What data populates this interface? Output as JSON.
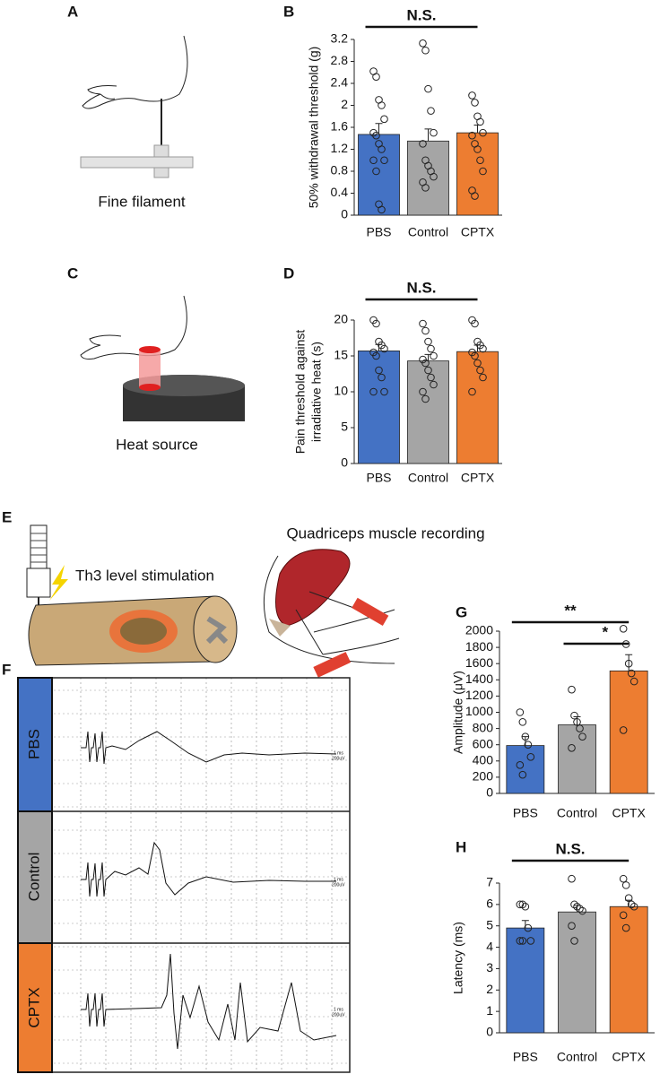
{
  "panel_labels": [
    "A",
    "B",
    "C",
    "D",
    "E",
    "F",
    "G",
    "H"
  ],
  "captions": {
    "fine_filament": "Fine filament",
    "heat_source": "Heat source",
    "stimulation": "Th3 level stimulation",
    "recording": "Quadriceps muscle recording"
  },
  "traces": {
    "labels": [
      "PBS",
      "Control",
      "CPTX"
    ],
    "scale": [
      "1 ms",
      "200uV"
    ]
  },
  "chart_data": [
    {
      "type": "bar",
      "ylabel": "50% withdrawal threshold (g)",
      "annotations": [
        "N.S."
      ],
      "categories": [
        "PBS",
        "Control",
        "CPTX"
      ],
      "colors": [
        "#4472c4",
        "#a5a5a5",
        "#ed7d31"
      ],
      "values": [
        1.47,
        1.35,
        1.5
      ],
      "errors": [
        0.2,
        0.22,
        0.14
      ],
      "points": [
        [
          2.62,
          2.52,
          2.1,
          2.0,
          1.75,
          1.5,
          1.45,
          1.3,
          1.2,
          1.0,
          1.0,
          0.8,
          0.2,
          0.1
        ],
        [
          3.13,
          3.0,
          2.3,
          1.9,
          1.5,
          1.3,
          1.0,
          0.9,
          0.8,
          0.7,
          0.6,
          0.5
        ],
        [
          2.18,
          2.05,
          1.8,
          1.7,
          1.5,
          1.45,
          1.3,
          1.2,
          1.0,
          0.8,
          0.45,
          0.35
        ]
      ],
      "ylim": [
        0,
        3.2
      ],
      "yticks": [
        0,
        0.4,
        0.8,
        1.2,
        1.6,
        2,
        2.4,
        2.8,
        3.2
      ]
    },
    {
      "type": "bar",
      "ylabel": [
        "Pain threshold against",
        "irradiative heat (s)"
      ],
      "annotations": [
        "N.S."
      ],
      "categories": [
        "PBS",
        "Control",
        "CPTX"
      ],
      "colors": [
        "#4472c4",
        "#a5a5a5",
        "#ed7d31"
      ],
      "values": [
        15.7,
        14.3,
        15.6
      ],
      "errors": [
        0.9,
        0.9,
        0.9
      ],
      "points": [
        [
          20,
          19.5,
          17,
          16.5,
          16,
          15.5,
          15,
          13,
          12,
          10,
          10
        ],
        [
          19.5,
          18.5,
          17,
          16,
          15,
          14.5,
          14,
          13,
          12,
          11,
          10,
          9
        ],
        [
          20,
          19.5,
          17,
          16.5,
          16,
          15.5,
          15,
          14,
          13,
          12,
          10
        ]
      ],
      "ylim": [
        0,
        20
      ],
      "yticks": [
        0,
        5,
        10,
        15,
        20
      ]
    },
    {
      "type": "bar",
      "ylabel": "Amplitude (μV)",
      "annotations": [
        "**",
        "*"
      ],
      "categories": [
        "PBS",
        "Control",
        "CPTX"
      ],
      "colors": [
        "#4472c4",
        "#a5a5a5",
        "#ed7d31"
      ],
      "values": [
        590,
        845,
        1510
      ],
      "errors": [
        110,
        100,
        200
      ],
      "points": [
        [
          1000,
          880,
          700,
          600,
          450,
          350,
          230
        ],
        [
          1280,
          960,
          880,
          800,
          700,
          560
        ],
        [
          2030,
          1840,
          1600,
          1480,
          1380,
          780
        ]
      ],
      "ylim": [
        0,
        2000
      ],
      "yticks": [
        0,
        200,
        400,
        600,
        800,
        1000,
        1200,
        1400,
        1600,
        1800,
        2000
      ]
    },
    {
      "type": "bar",
      "ylabel": "Latency (ms)",
      "annotations": [
        "N.S."
      ],
      "categories": [
        "PBS",
        "Control",
        "CPTX"
      ],
      "colors": [
        "#4472c4",
        "#a5a5a5",
        "#ed7d31"
      ],
      "values": [
        4.9,
        5.65,
        5.9
      ],
      "errors": [
        0.35,
        0.3,
        0.3
      ],
      "points": [
        [
          6.0,
          6.0,
          5.9,
          4.9,
          4.3,
          4.3,
          4.3
        ],
        [
          7.2,
          6.0,
          5.9,
          5.8,
          5.7,
          5.0,
          4.3
        ],
        [
          7.2,
          6.9,
          6.3,
          6.0,
          5.9,
          5.5,
          4.9
        ]
      ],
      "ylim": [
        0,
        7
      ],
      "yticks": [
        0,
        1,
        2,
        3,
        4,
        5,
        6,
        7
      ]
    }
  ]
}
